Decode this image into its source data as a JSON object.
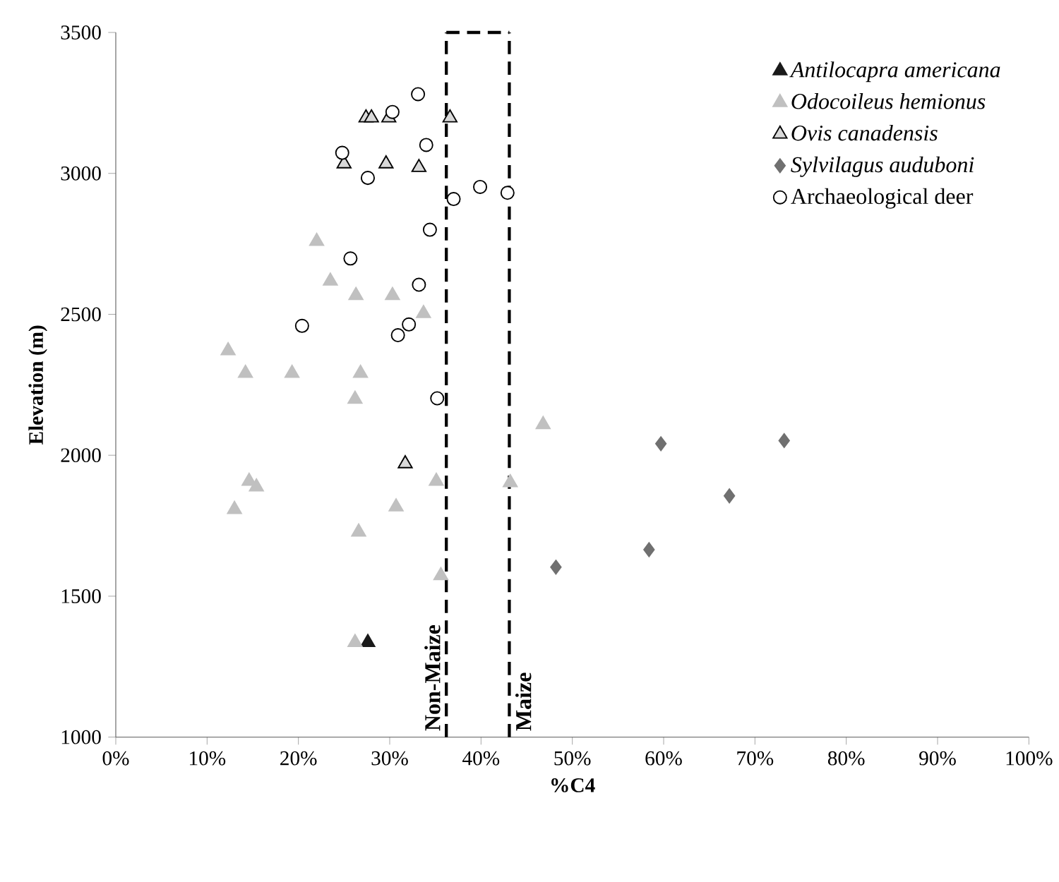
{
  "chart_data": {
    "type": "scatter",
    "xlabel": "%C4",
    "ylabel": "Elevation (m)",
    "xlim": [
      0,
      100
    ],
    "ylim": [
      1000,
      3500
    ],
    "xticks": [
      {
        "value": 0,
        "label": "0%"
      },
      {
        "value": 10,
        "label": "10%"
      },
      {
        "value": 20,
        "label": "20%"
      },
      {
        "value": 30,
        "label": "30%"
      },
      {
        "value": 40,
        "label": "40%"
      },
      {
        "value": 50,
        "label": "50%"
      },
      {
        "value": 60,
        "label": "60%"
      },
      {
        "value": 70,
        "label": "70%"
      },
      {
        "value": 80,
        "label": "80%"
      },
      {
        "value": 90,
        "label": "90%"
      },
      {
        "value": 100,
        "label": "100%"
      }
    ],
    "yticks": [
      1000,
      1500,
      2000,
      2500,
      3000,
      3500
    ],
    "legend": "top right",
    "grid": false,
    "series": [
      {
        "name": "*Antilocapra americana*",
        "color": "#1a1a1a",
        "marker": "triangle",
        "x": [
          27.6
        ],
        "values": [
          1336
        ]
      },
      {
        "name": "*Odocoileus hemionus*",
        "color": "#c0c0c0",
        "marker": "triangle",
        "x": [
          22.0,
          23.5,
          26.3,
          30.3,
          33.7,
          12.3,
          14.2,
          19.3,
          26.8,
          26.2,
          14.6,
          15.4,
          35.1,
          13.0,
          30.7,
          26.6,
          35.6,
          26.2,
          46.8,
          43.2
        ],
        "values": [
          2759,
          2618,
          2567,
          2567,
          2503,
          2371,
          2291,
          2291,
          2291,
          2199,
          1908,
          1888,
          1908,
          1808,
          1817,
          1728,
          1573,
          1336,
          2109,
          1903
        ]
      },
      {
        "name": "*Ovis canadensis*",
        "color": "#d9d9d9",
        "marker": "triangle",
        "x": [
          27.4,
          28.0,
          29.9,
          36.6,
          25.0,
          29.6,
          33.2,
          31.7
        ],
        "values": [
          3197,
          3197,
          3197,
          3197,
          3034,
          3034,
          3021,
          1970
        ]
      },
      {
        "name": "*Sylvilagus auduboni*",
        "color": "#707070",
        "marker": "diamond",
        "x": [
          59.7,
          58.4,
          48.2,
          67.2,
          73.2
        ],
        "values": [
          2041,
          1665,
          1603,
          1856,
          2052
        ]
      },
      {
        "name": "Archaeological deer",
        "color": "#ffffff",
        "marker": "circle",
        "x": [
          33.1,
          30.3,
          34.0,
          24.8,
          27.6,
          39.9,
          37.0,
          42.9,
          34.4,
          25.7,
          33.2,
          20.4,
          32.1,
          30.9,
          35.2
        ],
        "values": [
          3281,
          3218,
          3101,
          3073,
          2984,
          2952,
          2909,
          2931,
          2800,
          2698,
          2605,
          2459,
          2464,
          2426,
          2202
        ]
      }
    ],
    "ref_lines": [
      {
        "axis": "x",
        "value": 36.2,
        "label": "Non-Maize",
        "line_style": "dashed",
        "color": "#000000"
      },
      {
        "axis": "x",
        "value": 43.1,
        "label": "Maize",
        "line_style": "dashed",
        "color": "#000000"
      }
    ]
  }
}
